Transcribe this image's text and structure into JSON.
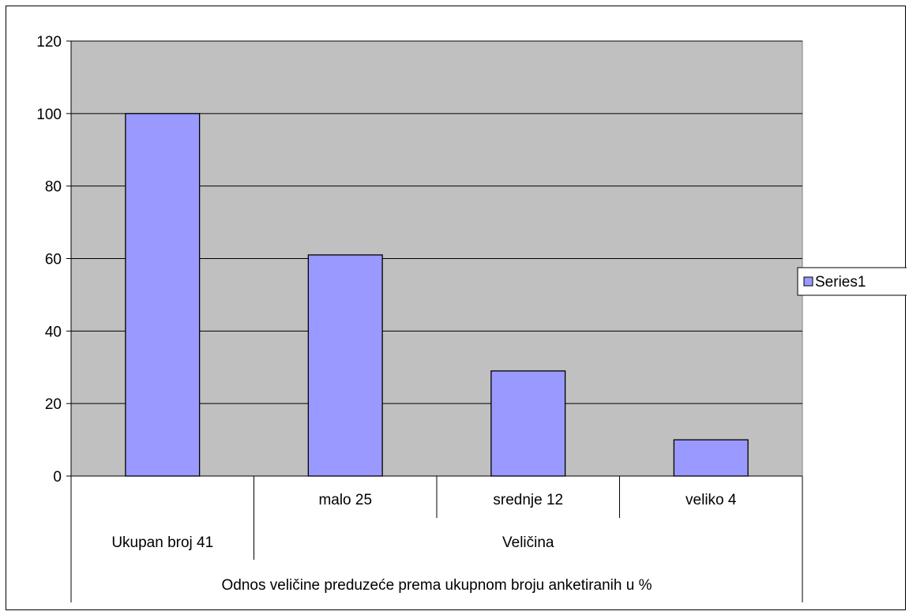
{
  "chart_data": {
    "type": "bar",
    "categories": [
      {
        "level1": "",
        "level2": "Ukupan broj 41",
        "group": "Odnos veličine preduzeće prema ukupnom broju anketiranih u %"
      },
      {
        "level1": "malo 25",
        "level2": "Veličina",
        "group": "Odnos veličine preduzeće prema ukupnom broju anketiranih u %"
      },
      {
        "level1": "srednje 12",
        "level2": "Veličina",
        "group": "Odnos veličine preduzeće prema ukupnom broju anketiranih u %"
      },
      {
        "level1": "veliko 4",
        "level2": "Veličina",
        "group": "Odnos veličine preduzeće prema ukupnom broju anketiranih u %"
      }
    ],
    "category_labels": {
      "level1": [
        "malo 25",
        "srednje 12",
        "veliko 4"
      ],
      "level2": [
        "Ukupan broj 41",
        "Veličina"
      ],
      "level3": [
        "Odnos veličine preduzeće prema ukupnom broju anketiranih u %"
      ]
    },
    "series": [
      {
        "name": "Series1",
        "values": [
          100,
          61,
          29,
          10
        ]
      }
    ],
    "ylim": [
      0,
      120
    ],
    "yticks": [
      0,
      20,
      40,
      60,
      80,
      100,
      120
    ],
    "ytick_labels": [
      "0",
      "20",
      "40",
      "60",
      "80",
      "100",
      "120"
    ],
    "grid": true,
    "legend": "right",
    "colors": {
      "plot_bg": "#C0C0C0",
      "bar": "#9999FF",
      "grid": "#000000"
    }
  }
}
